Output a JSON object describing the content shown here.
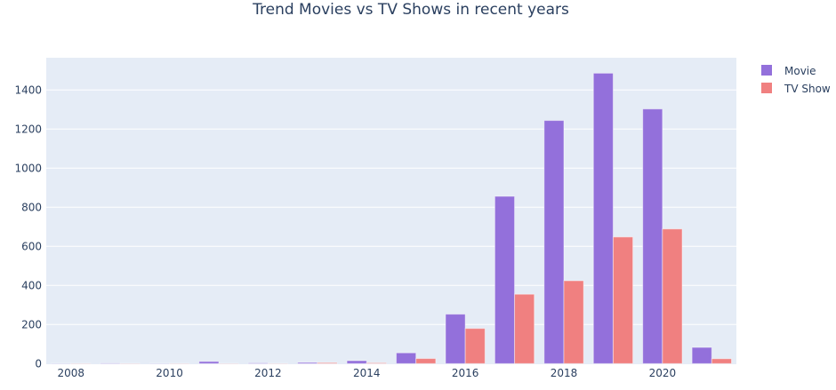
{
  "chart_data": {
    "type": "bar",
    "barmode": "group",
    "title": "Trend Movies vs TV Shows in recent years",
    "xlabel": "",
    "ylabel": "",
    "categories": [
      2008,
      2009,
      2010,
      2011,
      2012,
      2013,
      2014,
      2015,
      2016,
      2017,
      2018,
      2019,
      2020,
      2021
    ],
    "x_tick_labels": [
      "2008",
      "2010",
      "2012",
      "2014",
      "2016",
      "2018",
      "2020"
    ],
    "y_tick_labels": [
      "0",
      "200",
      "400",
      "600",
      "800",
      "1000",
      "1200",
      "1400"
    ],
    "ylim": [
      0,
      1590
    ],
    "grid": true,
    "legend_position": "top-right",
    "series": [
      {
        "name": "Movie",
        "color": "#9370db",
        "values": [
          1,
          2,
          1,
          11,
          3,
          6,
          15,
          55,
          253,
          856,
          1244,
          1486,
          1303,
          83
        ]
      },
      {
        "name": "TV Show",
        "color": "#f08080",
        "values": [
          1,
          1,
          1,
          1,
          1,
          5,
          4,
          26,
          180,
          355,
          424,
          648,
          689,
          25
        ]
      }
    ]
  }
}
